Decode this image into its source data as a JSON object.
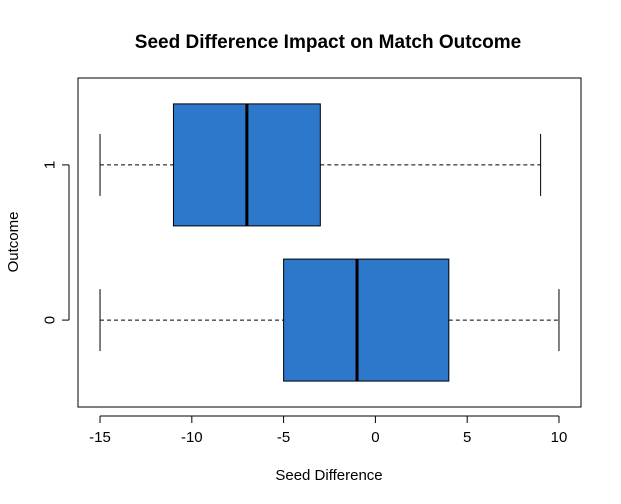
{
  "chart_data": {
    "type": "boxplot",
    "orientation": "horizontal",
    "title": "Seed Difference Impact on Match Outcome",
    "xlabel": "Seed Difference",
    "ylabel": "Outcome",
    "xlim": [
      -16.2,
      11.2
    ],
    "x_ticks": [
      -15,
      -10,
      -5,
      0,
      5,
      10
    ],
    "categories": [
      "0",
      "1"
    ],
    "box_color": "#2E78CC",
    "boxes": [
      {
        "category": "0",
        "min": -15,
        "q1": -5,
        "median": -1,
        "q3": 4,
        "max": 10
      },
      {
        "category": "1",
        "min": -15,
        "q1": -11,
        "median": -7,
        "q3": -3,
        "max": 9
      }
    ]
  }
}
